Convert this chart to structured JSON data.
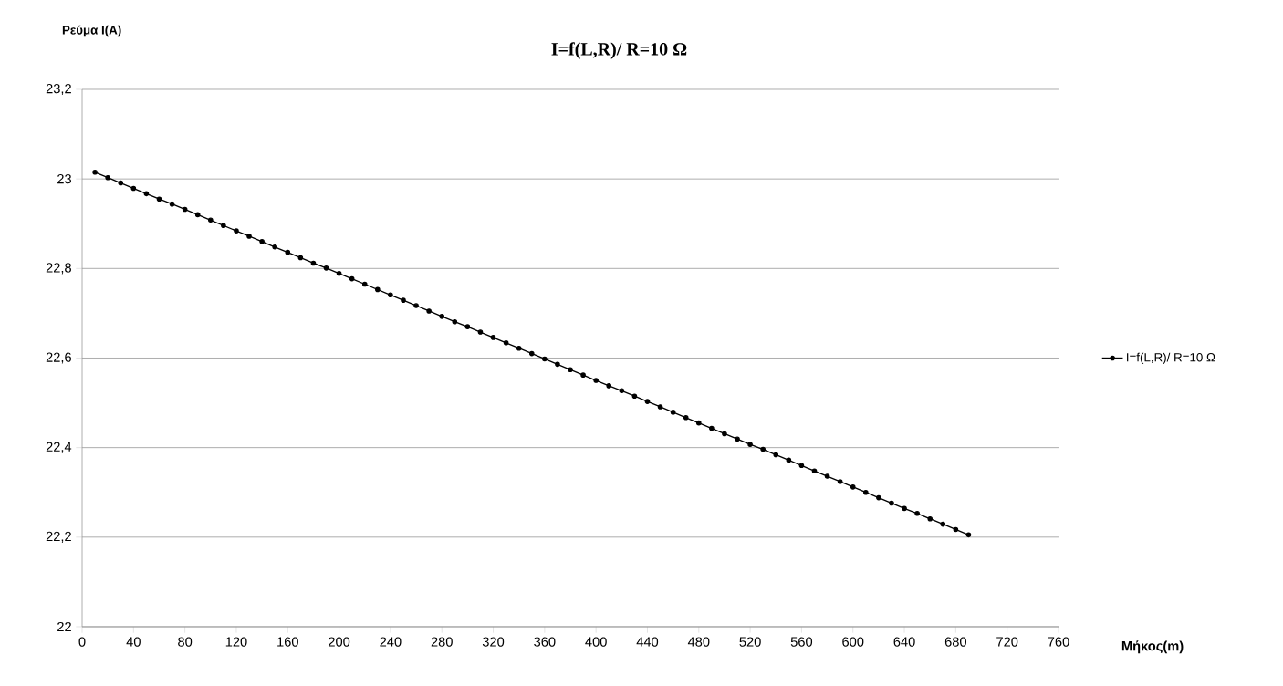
{
  "chart_data": {
    "type": "line",
    "title": "I=f(L,R)/ R=10 Ω",
    "xlabel": "Μήκος(m)",
    "ylabel": "Ρεύμα I(A)",
    "x": [
      10,
      20,
      30,
      40,
      50,
      60,
      70,
      80,
      90,
      100,
      110,
      120,
      130,
      140,
      150,
      160,
      170,
      180,
      190,
      200,
      210,
      220,
      230,
      240,
      250,
      260,
      270,
      280,
      290,
      300,
      310,
      320,
      330,
      340,
      350,
      360,
      370,
      380,
      390,
      400,
      410,
      420,
      430,
      440,
      450,
      460,
      470,
      480,
      490,
      500,
      510,
      520,
      530,
      540,
      550,
      560,
      570,
      580,
      590,
      600,
      610,
      620,
      630,
      640,
      650,
      660,
      670,
      680,
      690
    ],
    "series": [
      {
        "name": "I=f(L,R)/ R=10 Ω",
        "color": "#000000",
        "values": [
          23.015,
          23.003,
          22.991,
          22.979,
          22.967,
          22.955,
          22.944,
          22.932,
          22.92,
          22.908,
          22.896,
          22.884,
          22.872,
          22.86,
          22.848,
          22.836,
          22.824,
          22.812,
          22.801,
          22.789,
          22.777,
          22.765,
          22.753,
          22.741,
          22.729,
          22.717,
          22.705,
          22.693,
          22.681,
          22.67,
          22.658,
          22.646,
          22.634,
          22.622,
          22.61,
          22.598,
          22.586,
          22.574,
          22.562,
          22.55,
          22.538,
          22.527,
          22.515,
          22.503,
          22.491,
          22.479,
          22.467,
          22.455,
          22.443,
          22.431,
          22.419,
          22.407,
          22.396,
          22.384,
          22.372,
          22.36,
          22.348,
          22.336,
          22.324,
          22.312,
          22.3,
          22.288,
          22.276,
          22.264,
          22.253,
          22.241,
          22.229,
          22.217,
          22.205
        ]
      }
    ],
    "xlim": [
      0,
      760
    ],
    "xticks": [
      0,
      40,
      80,
      120,
      160,
      200,
      240,
      280,
      320,
      360,
      400,
      440,
      480,
      520,
      560,
      600,
      640,
      680,
      720,
      760
    ],
    "ylim": [
      22,
      23.2
    ],
    "yticks": [
      22,
      {
        "value": 22.2,
        "label": "22,2"
      },
      {
        "value": 22.4,
        "label": "22,4"
      },
      {
        "value": 22.6,
        "label": "22,6"
      },
      {
        "value": 22.8,
        "label": "22,8"
      },
      23,
      {
        "value": 23.2,
        "label": "23,2"
      }
    ],
    "grid": "y",
    "legend": "right",
    "marker": "circle"
  }
}
